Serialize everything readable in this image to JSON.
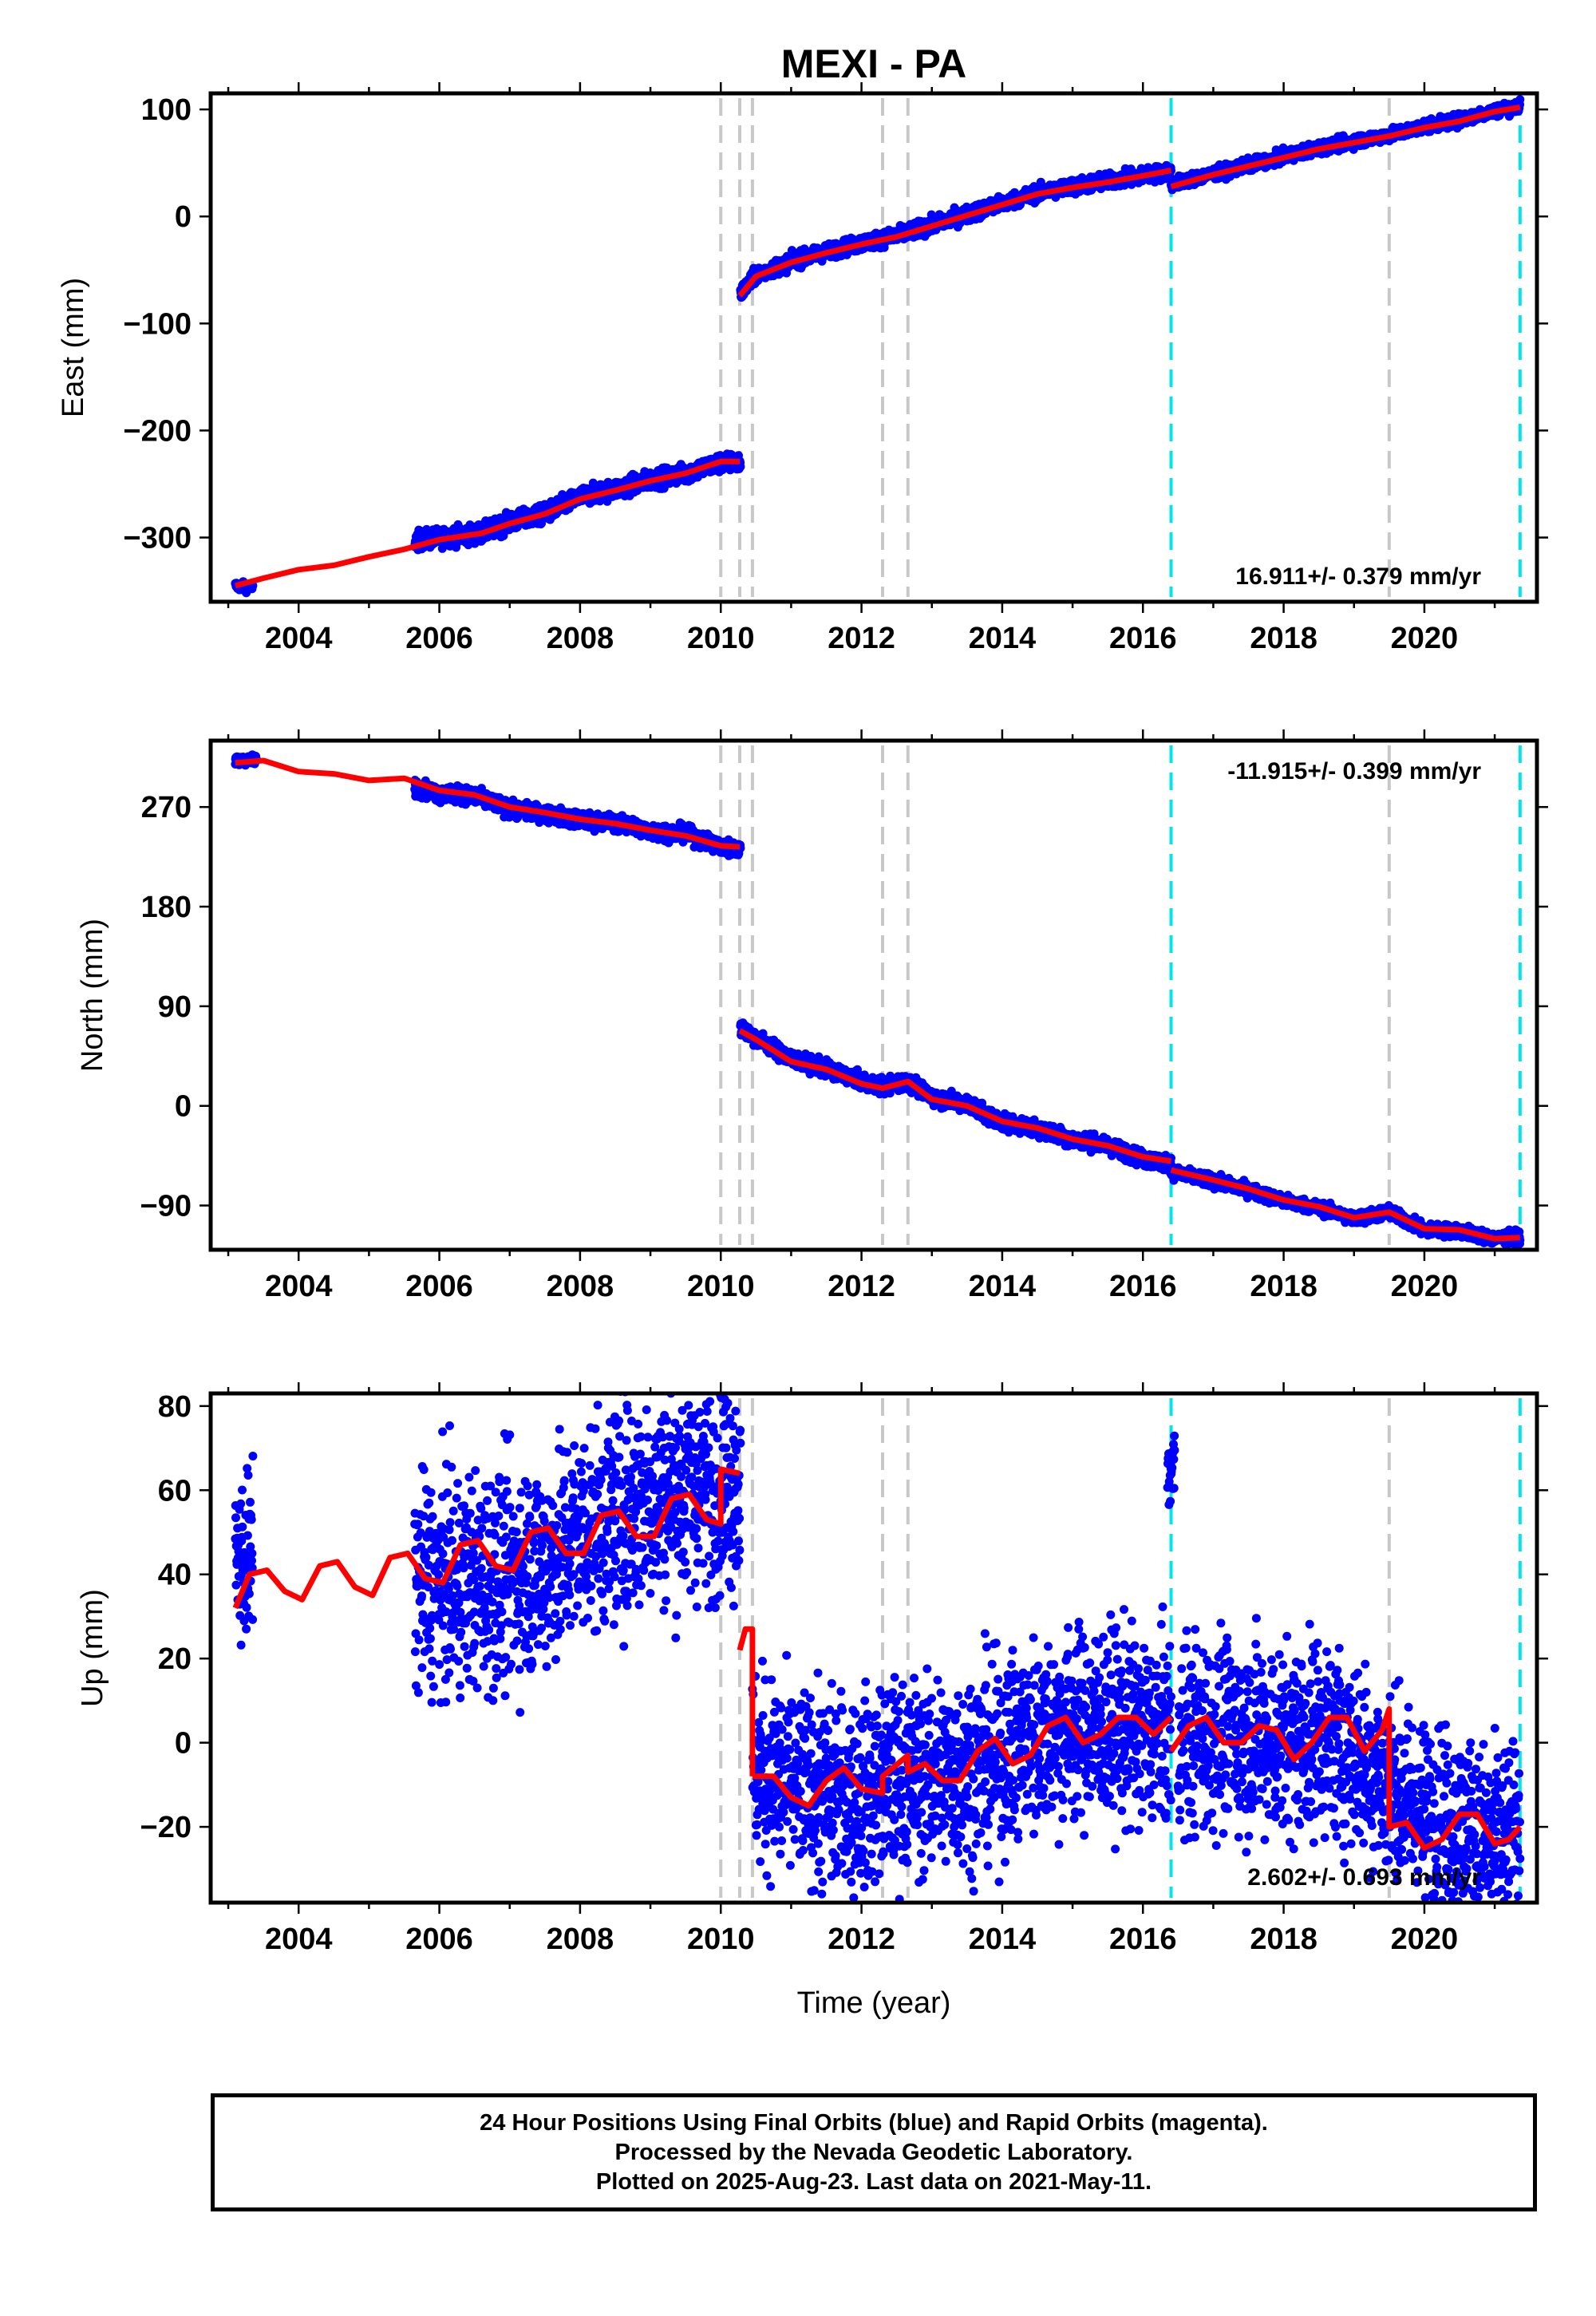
{
  "title": "MEXI - PA",
  "colors": {
    "data": "#0000ff",
    "model": "#ff0000",
    "event_gray": "#c8c8c8",
    "event_cyan": "#00e5ee"
  },
  "xlabel": "Time (year)",
  "caption": {
    "line1": "24 Hour Positions Using Final Orbits (blue) and Rapid Orbits (magenta).",
    "line2": "Processed by the Nevada Geodetic Laboratory.",
    "line3": "Plotted on 2025-Aug-23. Last data on 2021-May-11."
  },
  "chart_data": [
    {
      "type": "scatter",
      "name": "east",
      "ylabel": "East (mm)",
      "xlim": [
        2002.75,
        2021.6
      ],
      "ylim": [
        -360,
        115
      ],
      "xticks": [
        2004,
        2006,
        2008,
        2010,
        2012,
        2014,
        2016,
        2018,
        2020
      ],
      "yticks": [
        100,
        0,
        -100,
        -200,
        -300
      ],
      "ytick_labels": [
        "100",
        "0",
        "−100",
        "−200",
        "−300"
      ],
      "rate_label": "16.911+/- 0.379 mm/yr",
      "rate_position": "bottom-right",
      "gray_events": [
        2010.0,
        2010.27,
        2010.45,
        2012.3,
        2012.66,
        2019.5
      ],
      "cyan_events": [
        2016.4,
        2021.36
      ],
      "data_segments": [
        {
          "x": [
            2003.1,
            2003.35
          ],
          "y": [
            -345,
            -347
          ],
          "scatter": 3
        },
        {
          "x": [
            2005.65,
            2006.0,
            2006.6,
            2007.0,
            2007.5,
            2008.0,
            2008.5,
            2009.0,
            2009.5,
            2010.0,
            2010.28
          ],
          "y": [
            -303,
            -300,
            -296,
            -286,
            -278,
            -262,
            -255,
            -246,
            -240,
            -230,
            -230
          ],
          "scatter": 6
        },
        {
          "x": [
            2010.28,
            2010.5,
            2011.0,
            2011.5,
            2012.0,
            2012.5,
            2013.0,
            2013.5,
            2014.0,
            2014.5,
            2015.0,
            2015.5,
            2016.0,
            2016.4
          ],
          "y": [
            -72,
            -55,
            -42,
            -33,
            -25,
            -18,
            -8,
            2,
            12,
            22,
            28,
            33,
            38,
            42
          ],
          "scatter": 5
        },
        {
          "x": [
            2016.4,
            2017.0,
            2017.5,
            2018.0,
            2018.5,
            2019.0,
            2019.5,
            2020.0,
            2020.5,
            2021.0,
            2021.36
          ],
          "y": [
            30,
            40,
            48,
            56,
            64,
            70,
            76,
            84,
            90,
            99,
            103
          ],
          "scatter": 4
        }
      ],
      "model_segments": [
        {
          "x": [
            2003.1,
            2003.5,
            2004.0,
            2004.5,
            2005.0,
            2005.5,
            2006.0,
            2006.6,
            2007.0,
            2007.5,
            2008.0,
            2008.5,
            2009.0,
            2009.5,
            2010.0,
            2010.27
          ],
          "y": [
            -345,
            -338,
            -330,
            -326,
            -318,
            -311,
            -302,
            -296,
            -287,
            -278,
            -264,
            -256,
            -247,
            -240,
            -229,
            -229
          ]
        },
        {
          "x": [
            2010.27,
            2010.5,
            2011.0,
            2011.5,
            2012.0,
            2012.5,
            2013.0,
            2013.5,
            2014.0,
            2014.5,
            2015.0,
            2015.5,
            2016.0,
            2016.4
          ],
          "y": [
            -74,
            -56,
            -43,
            -34,
            -26,
            -19,
            -9,
            1,
            11,
            21,
            27,
            32,
            38,
            43
          ]
        },
        {
          "x": [
            2016.4,
            2017.0,
            2017.5,
            2018.0,
            2018.5,
            2019.0,
            2019.5,
            2020.0,
            2020.5,
            2021.0,
            2021.36
          ],
          "y": [
            28,
            39,
            47,
            55,
            63,
            69,
            75,
            83,
            89,
            98,
            102
          ]
        }
      ]
    },
    {
      "type": "scatter",
      "name": "north",
      "ylabel": "North (mm)",
      "xlim": [
        2002.75,
        2021.6
      ],
      "ylim": [
        -130,
        330
      ],
      "xticks": [
        2004,
        2006,
        2008,
        2010,
        2012,
        2014,
        2016,
        2018,
        2020
      ],
      "yticks": [
        270,
        180,
        90,
        0,
        -90
      ],
      "ytick_labels": [
        "270",
        "180",
        "90",
        "0",
        "−90"
      ],
      "rate_label": "-11.915+/- 0.399 mm/yr",
      "rate_position": "top-right",
      "gray_events": [
        2010.0,
        2010.27,
        2010.45,
        2012.3,
        2012.66,
        2019.5
      ],
      "cyan_events": [
        2016.4,
        2021.36
      ],
      "data_segments": [
        {
          "x": [
            2003.1,
            2003.4
          ],
          "y": [
            312,
            313
          ],
          "scatter": 3
        },
        {
          "x": [
            2005.65,
            2006.0,
            2006.5,
            2007.0,
            2007.5,
            2008.0,
            2008.5,
            2009.0,
            2009.5,
            2010.0,
            2010.28
          ],
          "y": [
            288,
            282,
            280,
            268,
            264,
            258,
            256,
            248,
            246,
            234,
            232
          ],
          "scatter": 5
        },
        {
          "x": [
            2010.28,
            2010.5,
            2011.0,
            2011.5,
            2012.0,
            2012.3,
            2012.66,
            2013.0,
            2013.5,
            2014.0,
            2014.5,
            2015.0,
            2015.5,
            2016.0,
            2016.4
          ],
          "y": [
            70,
            62,
            42,
            34,
            22,
            18,
            22,
            8,
            2,
            -15,
            -20,
            -30,
            -36,
            -48,
            -52
          ],
          "scatter": 5
        },
        {
          "x": [
            2016.4,
            2017.0,
            2017.5,
            2018.0,
            2018.5,
            2019.0,
            2019.5,
            2020.0,
            2020.5,
            2021.0,
            2021.36
          ],
          "y": [
            -60,
            -68,
            -76,
            -86,
            -92,
            -102,
            -96,
            -112,
            -113,
            -120,
            -118
          ],
          "scatter": 4
        }
      ],
      "model_segments": [
        {
          "x": [
            2003.1,
            2003.5,
            2004.0,
            2004.5,
            2005.0,
            2005.5,
            2006.0,
            2006.5,
            2007.0,
            2007.5,
            2008.0,
            2008.5,
            2009.0,
            2009.5,
            2010.0,
            2010.27
          ],
          "y": [
            310,
            312,
            302,
            300,
            294,
            296,
            285,
            281,
            270,
            265,
            259,
            255,
            249,
            244,
            235,
            234
          ]
        },
        {
          "x": [
            2010.27,
            2010.5,
            2011.0,
            2011.5,
            2012.0,
            2012.3,
            2012.66,
            2013.0,
            2013.5,
            2014.0,
            2014.5,
            2015.0,
            2015.5,
            2016.0,
            2016.4
          ],
          "y": [
            68,
            60,
            40,
            33,
            20,
            16,
            22,
            6,
            0,
            -14,
            -20,
            -30,
            -36,
            -46,
            -50
          ]
        },
        {
          "x": [
            2016.4,
            2017.0,
            2017.5,
            2018.0,
            2018.5,
            2019.0,
            2019.5,
            2020.0,
            2020.5,
            2021.0,
            2021.36
          ],
          "y": [
            -58,
            -67,
            -75,
            -85,
            -91,
            -101,
            -96,
            -111,
            -112,
            -120,
            -119
          ]
        }
      ]
    },
    {
      "type": "scatter",
      "name": "up",
      "ylabel": "Up (mm)",
      "xlim": [
        2002.75,
        2021.6
      ],
      "ylim": [
        -38,
        83
      ],
      "xticks": [
        2004,
        2006,
        2008,
        2010,
        2012,
        2014,
        2016,
        2018,
        2020
      ],
      "yticks": [
        80,
        60,
        40,
        20,
        0,
        -20
      ],
      "ytick_labels": [
        "80",
        "60",
        "40",
        "20",
        "0",
        "−20"
      ],
      "rate_label": "2.602+/- 0.693 mm/yr",
      "rate_position": "bottom-right",
      "gray_events": [
        2010.0,
        2010.27,
        2010.45,
        2012.3,
        2012.66,
        2019.5
      ],
      "cyan_events": [
        2016.4,
        2021.36
      ],
      "data_segments": [
        {
          "x": [
            2003.1,
            2003.35
          ],
          "y": [
            42,
            44
          ],
          "scatter": 14
        },
        {
          "x": [
            2005.65,
            2006.0,
            2006.5,
            2007.0,
            2007.5,
            2008.0,
            2008.5,
            2009.0,
            2009.5,
            2010.0,
            2010.28
          ],
          "y": [
            38,
            38,
            38,
            40,
            42,
            50,
            54,
            58,
            60,
            62,
            62
          ],
          "scatter": 18
        },
        {
          "x": [
            2010.45,
            2011.0,
            2011.5,
            2012.0,
            2012.5,
            2013.0,
            2013.5,
            2014.0,
            2014.5,
            2015.0,
            2015.5,
            2016.0,
            2016.4
          ],
          "y": [
            -6,
            -10,
            -12,
            -12,
            -8,
            -8,
            -6,
            -3,
            2,
            4,
            4,
            3,
            2
          ],
          "scatter": 16
        },
        {
          "x": [
            2016.35,
            2016.45
          ],
          "y": [
            64,
            66
          ],
          "scatter": 6
        },
        {
          "x": [
            2016.5,
            2017.0,
            2017.5,
            2018.0,
            2018.5,
            2019.0,
            2019.5,
            2020.0,
            2020.5,
            2021.0,
            2021.36
          ],
          "y": [
            2,
            2,
            2,
            0,
            2,
            -2,
            -10,
            -18,
            -20,
            -24,
            -24
          ],
          "scatter": 16
        }
      ],
      "model_segments": [
        {
          "x": [
            2003.1,
            2003.3,
            2003.55,
            2003.8,
            2004.05,
            2004.3,
            2004.55,
            2004.8,
            2005.05,
            2005.3,
            2005.55,
            2005.8,
            2006.05,
            2006.3,
            2006.55,
            2006.8,
            2007.05,
            2007.3,
            2007.55,
            2007.8,
            2008.05,
            2008.3,
            2008.55,
            2008.8,
            2009.05,
            2009.3,
            2009.55,
            2009.8,
            2010.0,
            2010.0,
            2010.27
          ],
          "y": [
            32,
            40,
            41,
            36,
            34,
            42,
            43,
            37,
            35,
            44,
            45,
            39,
            38,
            47,
            48,
            42,
            41,
            50,
            51,
            45,
            45,
            54,
            55,
            49,
            49,
            58,
            59,
            53,
            52,
            65,
            64
          ]
        },
        {
          "x": [
            2010.27,
            2010.35,
            2010.45,
            2010.45
          ],
          "y": [
            22,
            27,
            27,
            -8
          ]
        },
        {
          "x": [
            2010.45,
            2010.75,
            2011.0,
            2011.25,
            2011.5,
            2011.75,
            2012.0,
            2012.3,
            2012.3,
            2012.66,
            2012.66,
            2012.9,
            2013.15,
            2013.4,
            2013.65,
            2013.9,
            2014.15,
            2014.4,
            2014.65,
            2014.9,
            2015.15,
            2015.4,
            2015.65,
            2015.9,
            2016.15,
            2016.4
          ],
          "y": [
            -8,
            -8,
            -13,
            -15,
            -9,
            -6,
            -11,
            -12,
            -8,
            -3,
            -7,
            -5,
            -9,
            -9,
            -2,
            1,
            -5,
            -3,
            4,
            6,
            0,
            2,
            6,
            6,
            2,
            6
          ]
        },
        {
          "x": [
            2016.4,
            2016.65,
            2016.9,
            2017.15,
            2017.4,
            2017.65,
            2017.9,
            2018.15,
            2018.4,
            2018.65,
            2018.9,
            2019.15,
            2019.4,
            2019.5,
            2019.5,
            2019.75,
            2020.0,
            2020.25,
            2020.5,
            2020.75,
            2021.0,
            2021.2,
            2021.36
          ],
          "y": [
            -2,
            4,
            6,
            0,
            0,
            4,
            3,
            -4,
            0,
            6,
            6,
            -2,
            3,
            8,
            -20,
            -19,
            -25,
            -23,
            -17,
            -17,
            -24,
            -23,
            -20
          ]
        }
      ]
    }
  ]
}
